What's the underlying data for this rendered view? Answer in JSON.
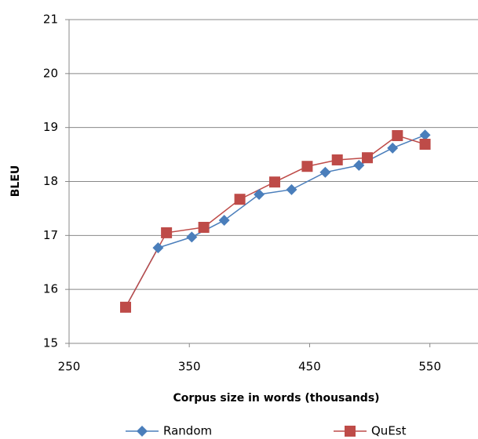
{
  "chart_data": {
    "type": "line",
    "x_label": "Corpus size in words (thousands)",
    "y_label": "BLEU",
    "xlim": [
      250,
      590
    ],
    "xticks": [
      250,
      350,
      450,
      550
    ],
    "ylim": [
      15,
      21
    ],
    "yticks": [
      15,
      16,
      17,
      18,
      19,
      20,
      21
    ],
    "grid": true,
    "legend": "bottom",
    "series": [
      {
        "name": "Random",
        "color": "#4a7ebb",
        "marker": "diamond",
        "x": [
          297,
          324,
          352,
          379,
          408,
          435,
          463,
          491,
          519,
          546
        ],
        "values": [
          15.67,
          16.77,
          16.97,
          17.28,
          17.76,
          17.85,
          18.17,
          18.3,
          18.62,
          18.86
        ]
      },
      {
        "name": "QuEst",
        "color": "#be4b48",
        "marker": "square",
        "x": [
          297,
          331,
          362,
          392,
          421,
          448,
          473,
          498,
          523,
          546
        ],
        "values": [
          15.67,
          17.05,
          17.15,
          17.67,
          17.99,
          18.28,
          18.4,
          18.44,
          18.85,
          18.69
        ]
      }
    ]
  }
}
